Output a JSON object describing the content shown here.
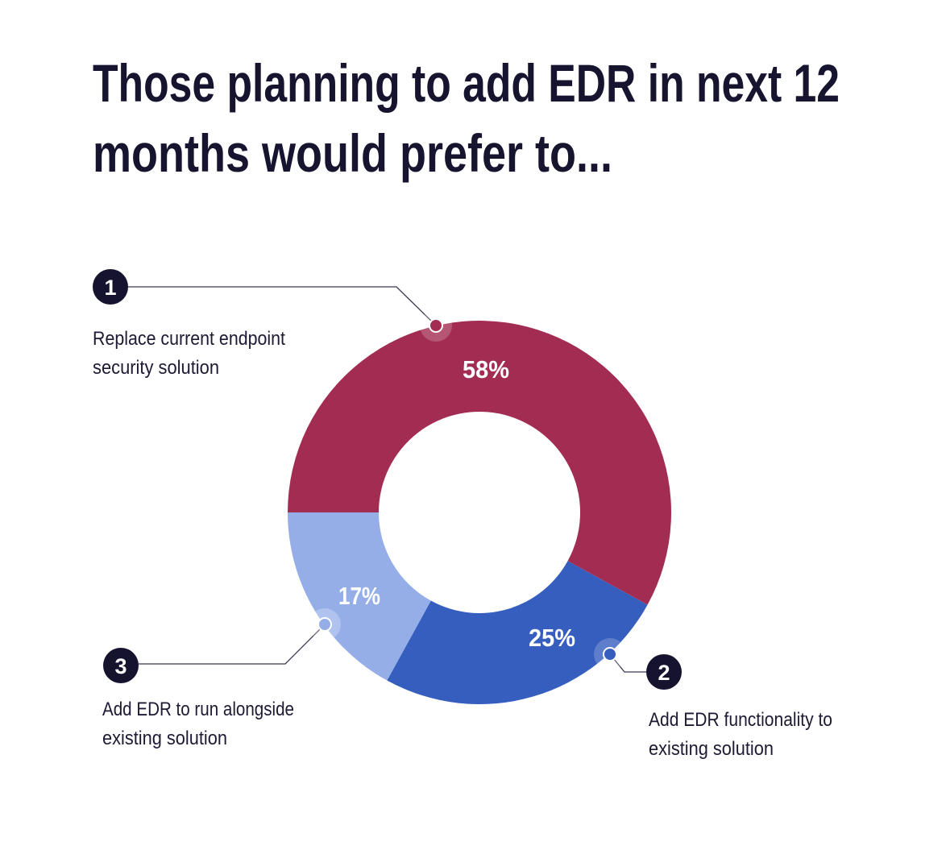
{
  "chart_data": {
    "type": "pie",
    "variant": "donut",
    "title_lines": [
      "Those planning to add EDR in next 12",
      "months would prefer to..."
    ],
    "categories": [
      "Replace current endpoint security solution",
      "Add EDR functionality to existing solution",
      "Add EDR to run alongside existing solution"
    ],
    "values": [
      58,
      25,
      17
    ],
    "unit": "%",
    "data_labels": [
      "58%",
      "25%",
      "17%"
    ],
    "colors": [
      "#A32D52",
      "#365EBF",
      "#96AEE8"
    ],
    "callouts": [
      {
        "number": "1",
        "lines": [
          "Replace current endpoint",
          "security solution"
        ]
      },
      {
        "number": "2",
        "lines": [
          "Add EDR functionality to",
          "existing solution"
        ]
      },
      {
        "number": "3",
        "lines": [
          "Add EDR to run alongside",
          "existing solution"
        ]
      }
    ],
    "callout_badge_color": "#16132F"
  }
}
